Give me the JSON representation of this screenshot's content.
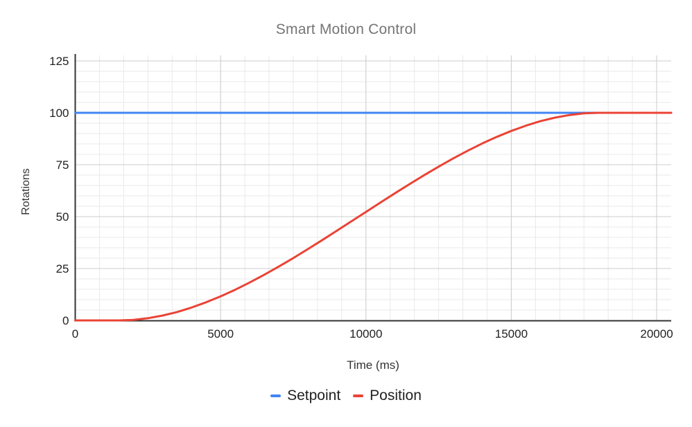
{
  "chart_data": {
    "type": "line",
    "title": "Smart Motion Control",
    "xlabel": "Time (ms)",
    "ylabel": "Rotations",
    "xlim": [
      0,
      20500
    ],
    "ylim": [
      0,
      125
    ],
    "x_ticks": [
      0,
      5000,
      10000,
      15000,
      20000
    ],
    "y_ticks": [
      0,
      25,
      50,
      75,
      100,
      125
    ],
    "x_minor_step": 833.33,
    "y_minor_step": 5,
    "grid": true,
    "legend_position": "bottom",
    "x": [
      0,
      500,
      1000,
      1500,
      2000,
      2500,
      3000,
      3500,
      4000,
      4500,
      5000,
      5500,
      6000,
      6500,
      7000,
      7500,
      8000,
      8500,
      9000,
      9500,
      10000,
      10500,
      11000,
      11500,
      12000,
      12500,
      13000,
      13500,
      14000,
      14500,
      15000,
      15500,
      16000,
      16500,
      17000,
      17500,
      18000,
      18500,
      19000,
      19500,
      20000,
      20500
    ],
    "series": [
      {
        "name": "Setpoint",
        "color": "#4285F4",
        "values": [
          100,
          100,
          100,
          100,
          100,
          100,
          100,
          100,
          100,
          100,
          100,
          100,
          100,
          100,
          100,
          100,
          100,
          100,
          100,
          100,
          100,
          100,
          100,
          100,
          100,
          100,
          100,
          100,
          100,
          100,
          100,
          100,
          100,
          100,
          100,
          100,
          100,
          100,
          100,
          100,
          100,
          100
        ]
      },
      {
        "name": "Position",
        "color": "#EA4335",
        "values": [
          0,
          0,
          0,
          0,
          0.27,
          1.06,
          2.33,
          4.05,
          6.19,
          8.72,
          11.59,
          14.78,
          18.26,
          21.98,
          25.93,
          30.05,
          34.33,
          38.72,
          43.2,
          47.73,
          52.27,
          56.8,
          61.28,
          65.67,
          69.95,
          74.07,
          78.02,
          81.74,
          85.22,
          88.41,
          91.28,
          93.8,
          95.95,
          97.67,
          98.94,
          99.73,
          100,
          100,
          100,
          100,
          100,
          100
        ]
      }
    ]
  },
  "colors": {
    "background": "#ffffff",
    "title_text": "#757575",
    "axis_title_text": "#333333",
    "tick_text": "#222222",
    "legend_text": "#212121",
    "axis_line": "#333333",
    "grid_major": "#cccccc",
    "grid_minor": "#e9e9e9"
  }
}
